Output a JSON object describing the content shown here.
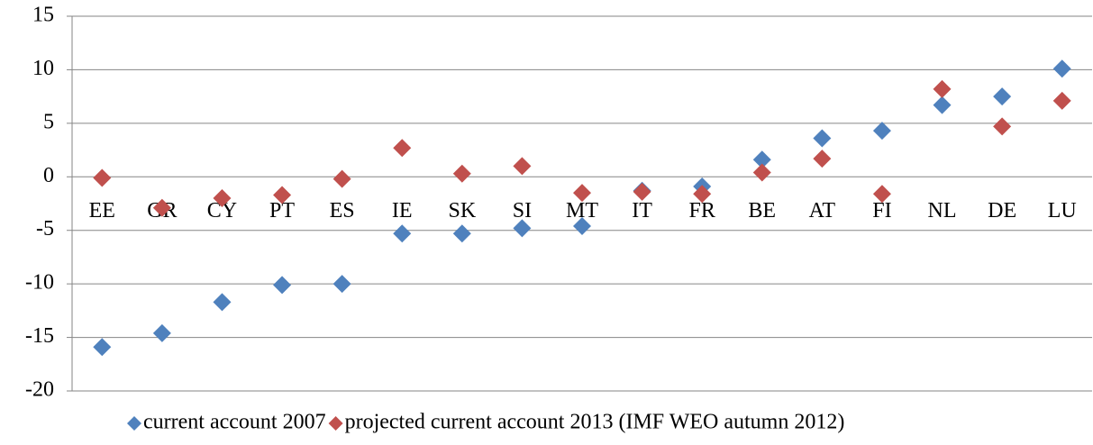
{
  "chart_data": {
    "type": "scatter",
    "categories": [
      "EE",
      "GR",
      "CY",
      "PT",
      "ES",
      "IE",
      "SK",
      "SI",
      "MT",
      "IT",
      "FR",
      "BE",
      "AT",
      "FI",
      "NL",
      "DE",
      "LU"
    ],
    "series": [
      {
        "name": "current account 2007",
        "color": "#4f81bd",
        "values": [
          -15.9,
          -14.6,
          -11.7,
          -10.1,
          -10.0,
          -5.3,
          -5.3,
          -4.8,
          -4.6,
          -1.3,
          -0.9,
          1.6,
          3.6,
          4.3,
          6.7,
          7.5,
          10.1
        ]
      },
      {
        "name": "projected current account 2013 (IMF WEO autumn 2012)",
        "color": "#c0504d",
        "values": [
          -0.1,
          -2.9,
          -2.0,
          -1.7,
          -0.2,
          2.7,
          0.3,
          1.0,
          -1.5,
          -1.4,
          -1.6,
          0.4,
          1.7,
          -1.6,
          8.2,
          4.7,
          7.1
        ]
      }
    ],
    "ylim": [
      -20,
      15
    ],
    "yticks": [
      -20,
      -15,
      -10,
      -5,
      0,
      5,
      10,
      15
    ],
    "grid": true,
    "legend": "bottom"
  }
}
